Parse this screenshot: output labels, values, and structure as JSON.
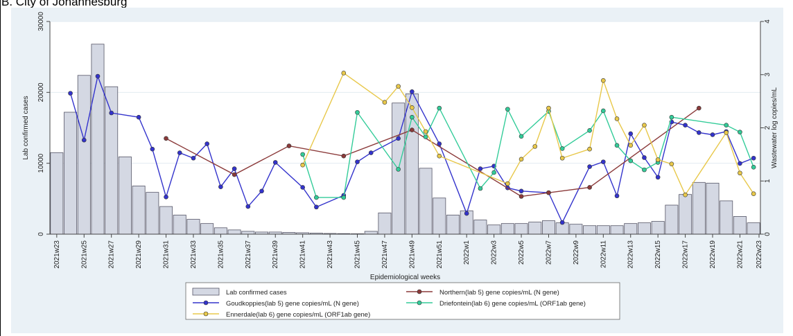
{
  "panel_title": "B. City of Johannesburg",
  "chart_data": {
    "type": "bar+line",
    "xlabel": "Epidemiological weeks",
    "ylabel_left": "Lab confirmed cases",
    "ylabel_right": "Wastewater log copies/mL",
    "ylim_left": [
      0,
      30000
    ],
    "ylim_right": [
      0,
      4
    ],
    "yticks_left": [
      "0",
      "10000",
      "20000",
      "30000"
    ],
    "yticks_right": [
      "0",
      "1",
      "2",
      "3",
      "4"
    ],
    "xtick_labels": [
      "2021w23",
      "2021w25",
      "2021w27",
      "2021w29",
      "2021w31",
      "2021w33",
      "2021w35",
      "2021w37",
      "2021w39",
      "2021w41",
      "2021w43",
      "2021w45",
      "2021w47",
      "2021w49",
      "2021w51",
      "2022w1",
      "2022w3",
      "2022w5",
      "2022w7",
      "2022w9",
      "2022w11",
      "2022w13",
      "2022w15",
      "2022w17",
      "2022w19",
      "2022w21",
      "2022w23"
    ],
    "weeks": [
      "2021w23",
      "2021w24",
      "2021w25",
      "2021w26",
      "2021w27",
      "2021w28",
      "2021w29",
      "2021w30",
      "2021w31",
      "2021w32",
      "2021w33",
      "2021w34",
      "2021w35",
      "2021w36",
      "2021w37",
      "2021w38",
      "2021w39",
      "2021w40",
      "2021w41",
      "2021w42",
      "2021w43",
      "2021w44",
      "2021w45",
      "2021w46",
      "2021w47",
      "2021w48",
      "2021w49",
      "2021w50",
      "2021w51",
      "2021w52",
      "2022w1",
      "2022w2",
      "2022w3",
      "2022w4",
      "2022w5",
      "2022w6",
      "2022w7",
      "2022w8",
      "2022w9",
      "2022w10",
      "2022w11",
      "2022w12",
      "2022w13",
      "2022w14",
      "2022w15",
      "2022w16",
      "2022w17",
      "2022w18",
      "2022w19",
      "2022w20",
      "2022w21",
      "2022w22"
    ],
    "bars": {
      "name": "Lab confirmed cases",
      "values": [
        11500,
        17200,
        22400,
        26800,
        20800,
        10900,
        6800,
        5900,
        3900,
        2700,
        2100,
        1500,
        900,
        600,
        400,
        300,
        300,
        250,
        200,
        150,
        100,
        80,
        60,
        400,
        3000,
        18500,
        19800,
        9300,
        5100,
        2700,
        3300,
        2000,
        1300,
        1500,
        1500,
        1700,
        1900,
        1600,
        1400,
        1200,
        1200,
        1200,
        1500,
        1600,
        1800,
        4100,
        5600,
        7300,
        7200,
        4700,
        2500,
        1600
      ]
    },
    "series": [
      {
        "name": "Goudkoppies(lab 5) gene copies/mL (N gene)",
        "color": "#3333cc",
        "points": [
          [
            "2021w24",
            2.65
          ],
          [
            "2021w25",
            1.77
          ],
          [
            "2021w26",
            2.97
          ],
          [
            "2021w27",
            2.28
          ],
          [
            "2021w29",
            2.2
          ],
          [
            "2021w30",
            1.6
          ],
          [
            "2021w31",
            0.7
          ],
          [
            "2021w32",
            1.53
          ],
          [
            "2021w33",
            1.43
          ],
          [
            "2021w34",
            1.7
          ],
          [
            "2021w35",
            0.89
          ],
          [
            "2021w36",
            1.23
          ],
          [
            "2021w37",
            0.52
          ],
          [
            "2021w38",
            0.81
          ],
          [
            "2021w39",
            1.35
          ],
          [
            "2021w41",
            0.88
          ],
          [
            "2021w42",
            0.51
          ],
          [
            "2021w44",
            0.73
          ],
          [
            "2021w45",
            1.36
          ],
          [
            "2021w46",
            1.53
          ],
          [
            "2021w48",
            1.8
          ],
          [
            "2021w49",
            2.68
          ],
          [
            "2021w51",
            1.7
          ],
          [
            "2022w1",
            0.39
          ],
          [
            "2022w2",
            1.23
          ],
          [
            "2022w3",
            1.28
          ],
          [
            "2022w4",
            0.87
          ],
          [
            "2022w5",
            0.81
          ],
          [
            "2022w7",
            0.78
          ],
          [
            "2022w8",
            0.22
          ],
          [
            "2022w10",
            1.27
          ],
          [
            "2022w11",
            1.36
          ],
          [
            "2022w12",
            0.72
          ],
          [
            "2022w13",
            1.89
          ],
          [
            "2022w14",
            1.44
          ],
          [
            "2022w15",
            1.07
          ],
          [
            "2022w16",
            2.11
          ],
          [
            "2022w17",
            2.05
          ],
          [
            "2022w18",
            1.91
          ],
          [
            "2022w19",
            1.87
          ],
          [
            "2022w20",
            1.93
          ],
          [
            "2022w21",
            1.33
          ],
          [
            "2022w22",
            1.43
          ]
        ]
      },
      {
        "name": "Northern(lab 5) gene copies/mL (N gene)",
        "color": "#8b3a3a",
        "points": [
          [
            "2021w31",
            1.8
          ],
          [
            "2021w36",
            1.12
          ],
          [
            "2021w40",
            1.66
          ],
          [
            "2021w44",
            1.47
          ],
          [
            "2021w49",
            1.96
          ],
          [
            "2022w5",
            0.71
          ],
          [
            "2022w7",
            0.78
          ],
          [
            "2022w10",
            0.88
          ],
          [
            "2022w18",
            2.37
          ]
        ]
      },
      {
        "name": "Driefontein(lab 6) gene copies/mL (ORF1ab gene)",
        "color": "#33cc99",
        "points": [
          [
            "2021w41",
            1.5
          ],
          [
            "2021w42",
            0.69
          ],
          [
            "2021w44",
            0.69
          ],
          [
            "2021w45",
            2.29
          ],
          [
            "2021w48",
            1.22
          ],
          [
            "2021w49",
            2.2
          ],
          [
            "2021w50",
            1.83
          ],
          [
            "2021w51",
            2.37
          ],
          [
            "2022w2",
            0.86
          ],
          [
            "2022w3",
            1.16
          ],
          [
            "2022w4",
            2.35
          ],
          [
            "2022w5",
            1.84
          ],
          [
            "2022w7",
            2.31
          ],
          [
            "2022w8",
            1.61
          ],
          [
            "2022w10",
            1.95
          ],
          [
            "2022w11",
            2.32
          ],
          [
            "2022w12",
            1.67
          ],
          [
            "2022w13",
            1.38
          ],
          [
            "2022w14",
            1.21
          ],
          [
            "2022w15",
            1.35
          ],
          [
            "2022w16",
            2.2
          ],
          [
            "2022w20",
            2.05
          ],
          [
            "2022w21",
            1.92
          ],
          [
            "2022w22",
            1.26
          ]
        ]
      },
      {
        "name": "Ennerdale(lab 6) gene copies/mL (ORF1ab gene)",
        "color": "#e8c84a",
        "points": [
          [
            "2021w41",
            1.3
          ],
          [
            "2021w44",
            3.03
          ],
          [
            "2021w47",
            2.48
          ],
          [
            "2021w48",
            2.78
          ],
          [
            "2021w49",
            2.38
          ],
          [
            "2021w50",
            1.93
          ],
          [
            "2021w51",
            1.47
          ],
          [
            "2022w4",
            0.95
          ],
          [
            "2022w5",
            1.41
          ],
          [
            "2022w6",
            1.65
          ],
          [
            "2022w7",
            2.37
          ],
          [
            "2022w8",
            1.43
          ],
          [
            "2022w10",
            1.6
          ],
          [
            "2022w11",
            2.89
          ],
          [
            "2022w12",
            2.17
          ],
          [
            "2022w13",
            1.67
          ],
          [
            "2022w14",
            2.05
          ],
          [
            "2022w15",
            1.4
          ],
          [
            "2022w16",
            1.32
          ],
          [
            "2022w17",
            0.74
          ],
          [
            "2022w20",
            1.91
          ],
          [
            "2022w21",
            1.15
          ],
          [
            "2022w22",
            0.76
          ]
        ]
      }
    ],
    "legend": [
      {
        "label": "Lab confirmed cases",
        "kind": "bar"
      },
      {
        "label": "Northern(lab 5) gene copies/mL (N gene)",
        "kind": "line",
        "series": 1
      },
      {
        "label": "Goudkoppies(lab 5) gene copies/mL (N gene)",
        "kind": "line",
        "series": 0
      },
      {
        "label": "Driefontein(lab 6) gene copies/mL (ORF1ab gene)",
        "kind": "line",
        "series": 2
      },
      {
        "label": "Ennerdale(lab 6) gene copies/mL (ORF1ab gene)",
        "kind": "line",
        "series": 3
      }
    ],
    "legend_position": "bottom",
    "grid": "horizontal",
    "colors": {
      "bar_fill": "#d4d8e3",
      "bar_stroke": "#555566",
      "plot_bg": "#ffffff",
      "outer_bg": "#eaf1f6",
      "grid": "#e3ebf1"
    }
  }
}
